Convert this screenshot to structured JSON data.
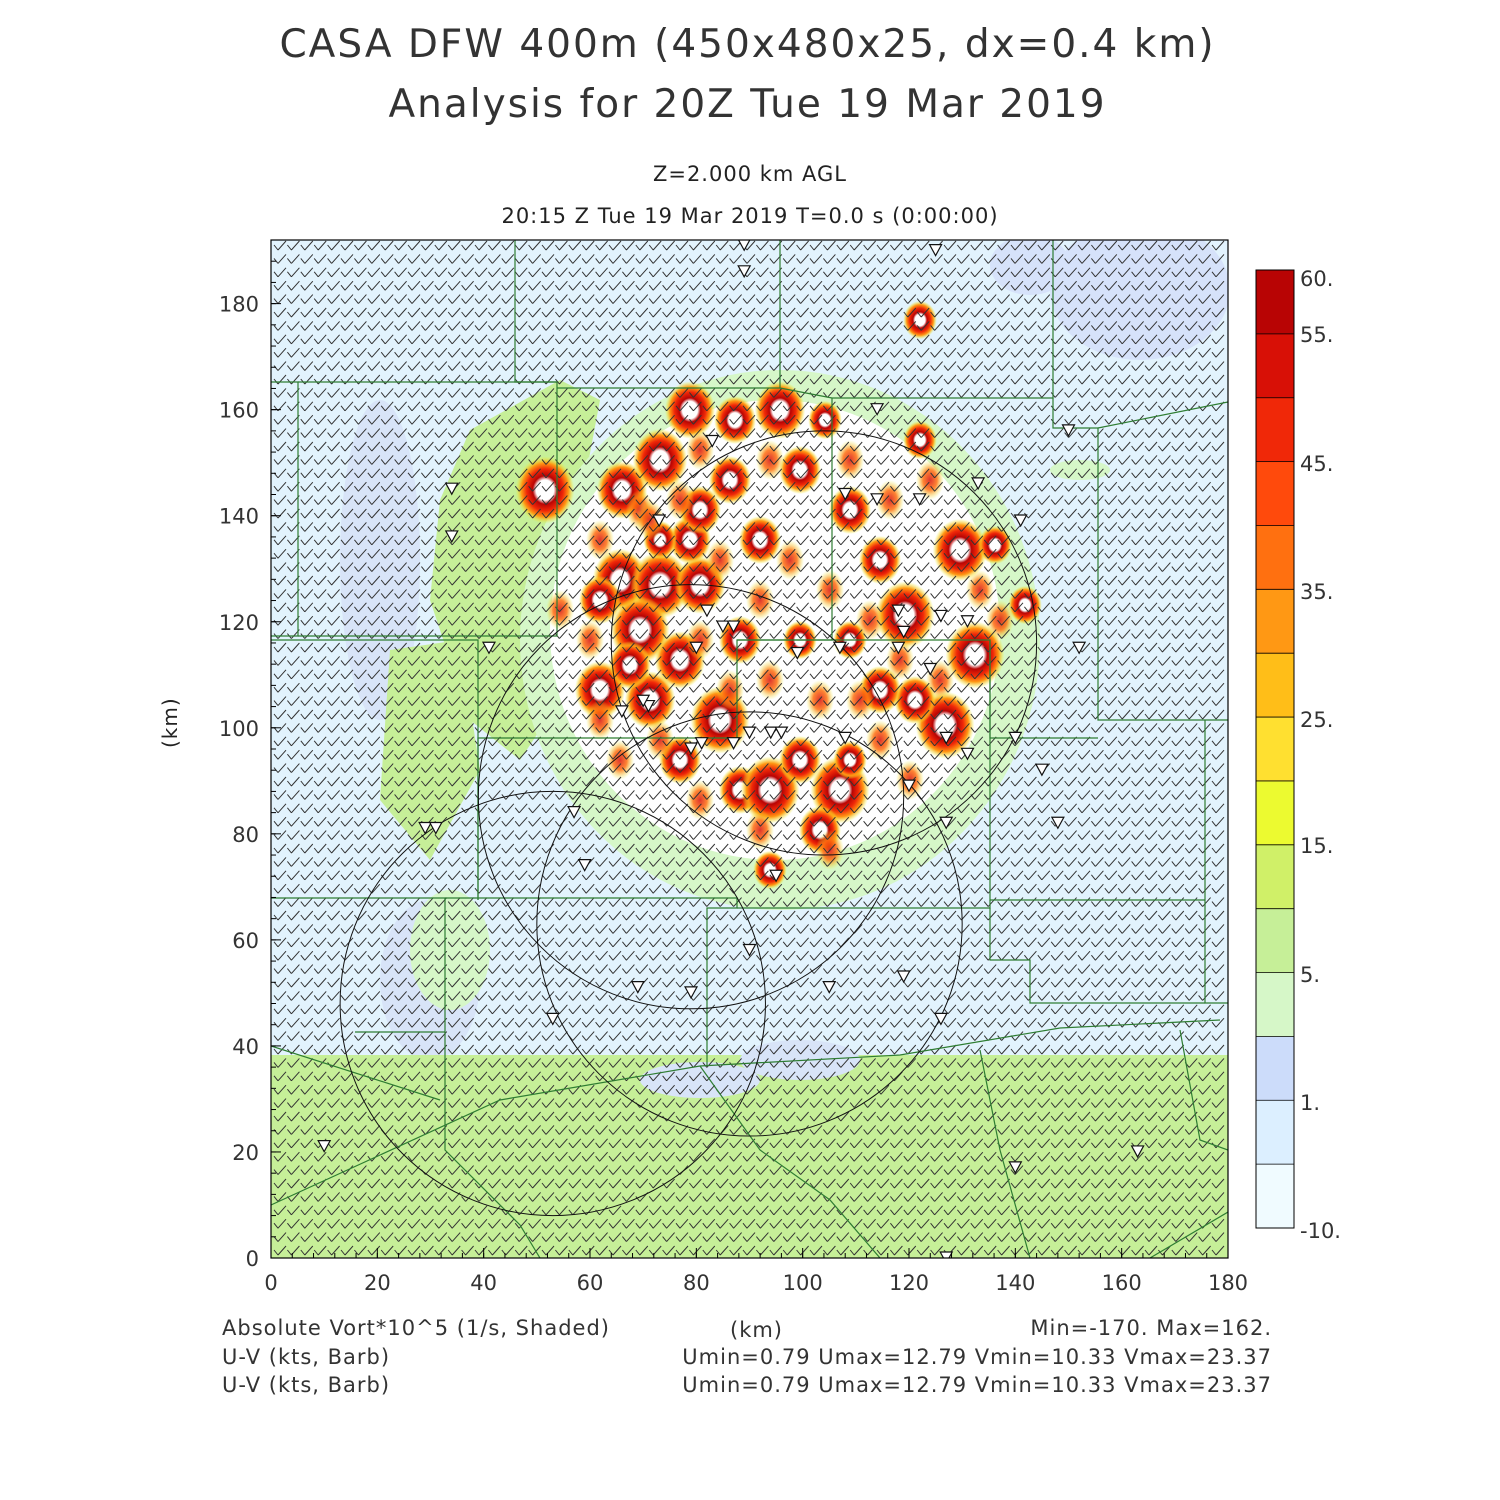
{
  "header": {
    "title_line1": "CASA DFW 400m (450x480x25, dx=0.4 km)",
    "title_line2": "Analysis for 20Z Tue 19 Mar 2019",
    "level": "Z=2.000 km AGL",
    "valid_time": "20:15 Z Tue 19 Mar 2019    T=0.0 s (0:00:00)"
  },
  "axes": {
    "x_label": "(km)",
    "y_label": "(km)",
    "x_range": [
      0,
      180
    ],
    "y_range": [
      0,
      192
    ],
    "x_ticks": [
      "0",
      "20",
      "40",
      "60",
      "80",
      "100",
      "120",
      "140",
      "160",
      "180"
    ],
    "y_ticks": [
      "0",
      "20",
      "40",
      "60",
      "80",
      "100",
      "120",
      "140",
      "160",
      "180"
    ]
  },
  "colorbar": {
    "labels": [
      "60.",
      "55.",
      "45.",
      "35.",
      "25.",
      "15.",
      "5.",
      "1.",
      "-10."
    ],
    "colors": [
      "#f0fbff",
      "#dcefff",
      "#ccdcfa",
      "#d6f7c8",
      "#c6ef98",
      "#d0f068",
      "#ecfa30",
      "#ffe030",
      "#ffbe18",
      "#ff9814",
      "#ff7010",
      "#ff4a0c",
      "#f02808",
      "#d81006",
      "#b80404"
    ]
  },
  "footer": {
    "field1": "Absolute Vort*10^5 (1/s, Shaded)",
    "field2": "U-V (kts, Barb)",
    "field3": "U-V (kts, Barb)",
    "units": "(km)",
    "minmax": "Min=-170. Max=162.",
    "stats1": "Umin=0.79  Umax=12.79  Vmin=10.33  Vmax=23.37",
    "stats2": "Umin=0.79  Umax=12.79  Vmin=10.33  Vmax=23.37"
  },
  "map": {
    "radar_circles_km": [
      {
        "cx": 53,
        "cy": 48,
        "r": 40
      },
      {
        "cx": 79,
        "cy": 87,
        "r": 40
      },
      {
        "cx": 104,
        "cy": 116,
        "r": 40
      },
      {
        "cx": 90,
        "cy": 63,
        "r": 40
      }
    ],
    "stations_km": [
      [
        89,
        191
      ],
      [
        89,
        186
      ],
      [
        125,
        190
      ],
      [
        114,
        160
      ],
      [
        150,
        156
      ],
      [
        83,
        154
      ],
      [
        34,
        145
      ],
      [
        108,
        144
      ],
      [
        114,
        143
      ],
      [
        122,
        143
      ],
      [
        133,
        146
      ],
      [
        141,
        139
      ],
      [
        34,
        136
      ],
      [
        73,
        139
      ],
      [
        131,
        120
      ],
      [
        126,
        121
      ],
      [
        82,
        122
      ],
      [
        80,
        115
      ],
      [
        85,
        119
      ],
      [
        87,
        119
      ],
      [
        118,
        122
      ],
      [
        118,
        115
      ],
      [
        119,
        118
      ],
      [
        107,
        115
      ],
      [
        124,
        111
      ],
      [
        152,
        115
      ],
      [
        71,
        104
      ],
      [
        70,
        105
      ],
      [
        66,
        103
      ],
      [
        41,
        115
      ],
      [
        99,
        114
      ],
      [
        79,
        96
      ],
      [
        81,
        97
      ],
      [
        87,
        97
      ],
      [
        90,
        99
      ],
      [
        94,
        99
      ],
      [
        96,
        99
      ],
      [
        108,
        98
      ],
      [
        131,
        95
      ],
      [
        140,
        98
      ],
      [
        127,
        98
      ],
      [
        145,
        92
      ],
      [
        120,
        89
      ],
      [
        127,
        82
      ],
      [
        57,
        84
      ],
      [
        148,
        82
      ],
      [
        29,
        81
      ],
      [
        31,
        81
      ],
      [
        59,
        74
      ],
      [
        95,
        72
      ],
      [
        90,
        58
      ],
      [
        69,
        51
      ],
      [
        79,
        50
      ],
      [
        53,
        45
      ],
      [
        105,
        51
      ],
      [
        119,
        53
      ],
      [
        126,
        45
      ],
      [
        10,
        21
      ],
      [
        140,
        17
      ],
      [
        163,
        20
      ],
      [
        127,
        0
      ]
    ]
  }
}
